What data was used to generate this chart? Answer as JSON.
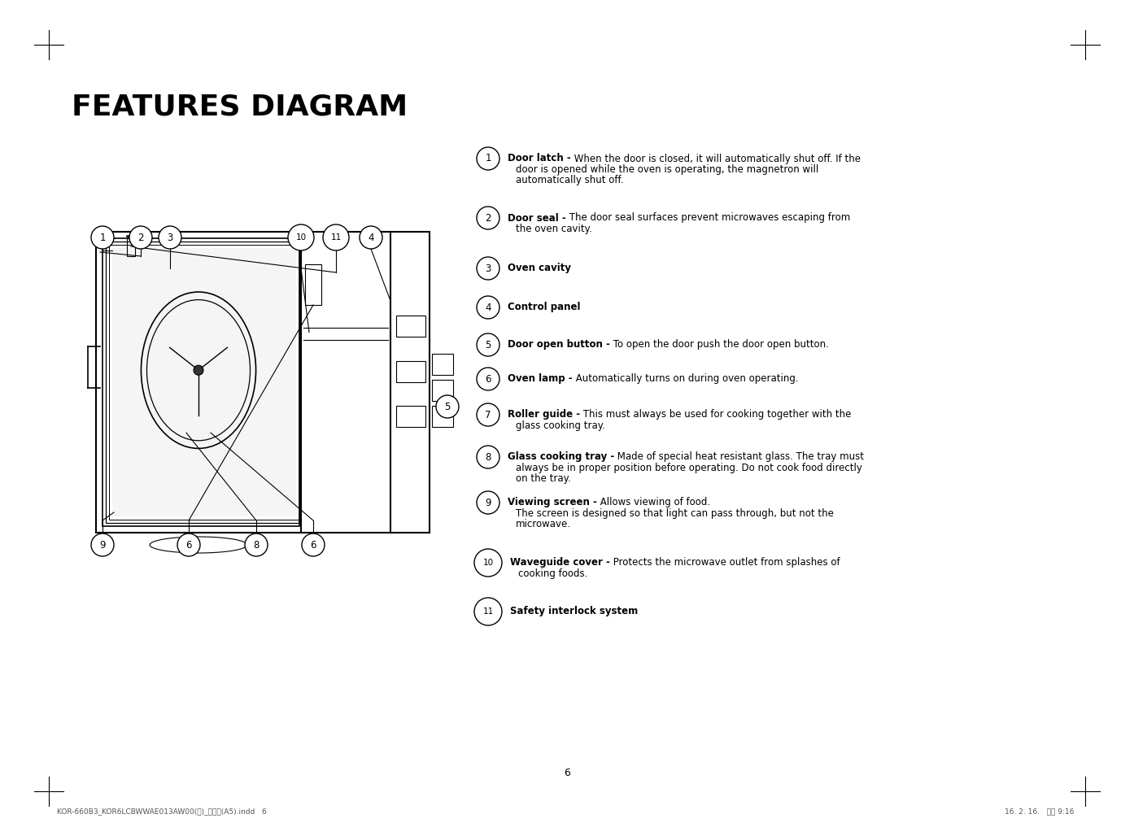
{
  "title": "FEATURES DIAGRAM",
  "bg_color": "#ffffff",
  "page_number": "6",
  "footer_left": "KOR-660B3_KOR6LCBWWAE013AW00(영)_미주향(A5).indd   6",
  "footer_right": "16. 2. 16.   오전 9:16",
  "items": [
    {
      "num": "1",
      "bold_text": "Door latch -",
      "normal_text": " When the door is closed, it will automatically shut off. If the\n    door is opened while the oven is operating, the magnetron will\n    automatically shut off."
    },
    {
      "num": "2",
      "bold_text": "Door seal -",
      "normal_text": " The door seal surfaces prevent microwaves escaping from\n    the oven cavity."
    },
    {
      "num": "3",
      "bold_text": "Oven cavity",
      "normal_text": ""
    },
    {
      "num": "4",
      "bold_text": "Control panel",
      "normal_text": ""
    },
    {
      "num": "5",
      "bold_text": "Door open button -",
      "normal_text": " To open the door push the door open button."
    },
    {
      "num": "6",
      "bold_text": "Oven lamp -",
      "normal_text": " Automatically turns on during oven operating."
    },
    {
      "num": "7",
      "bold_text": "Roller guide -",
      "normal_text": " This must always be used for cooking together with the\n    glass cooking tray."
    },
    {
      "num": "8",
      "bold_text": "Glass cooking tray -",
      "normal_text": " Made of special heat resistant glass. The tray must\n    always be in proper position before operating. Do not cook food directly\n    on the tray."
    },
    {
      "num": "9",
      "bold_text": "Viewing screen -",
      "normal_text": " Allows viewing of food.\n    The screen is designed so that light can pass through, but not the\n    microwave."
    },
    {
      "num": "10",
      "bold_text": "Waveguide cover -",
      "normal_text": " Protects the microwave outlet from splashes of\n    cooking foods."
    },
    {
      "num": "11",
      "bold_text": "Safety interlock system",
      "normal_text": ""
    }
  ]
}
